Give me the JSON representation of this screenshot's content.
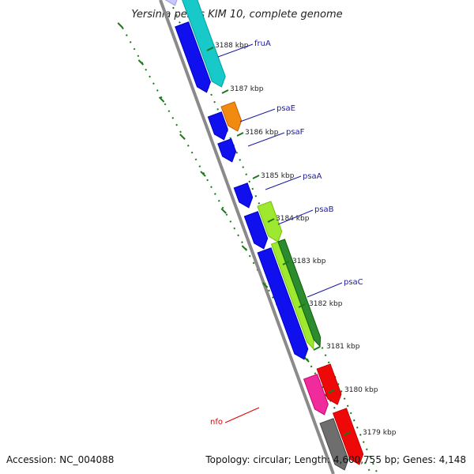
{
  "title": "Yersinia pestis KIM 10, complete genome",
  "footer": {
    "accession": "Accession: NC_004088",
    "summary": "Topology: circular; Length: 4,600,755 bp; Genes: 4,148"
  },
  "colors": {
    "backbone": "#8a8a8a",
    "ticks": "#1a7a1a",
    "blue": "#1010ee",
    "cyan": "#17c9c9",
    "orange": "#f08a10",
    "lightgreen": "#9ee830",
    "darkgreen": "#2e8a2e",
    "magenta": "#f02c9c",
    "red": "#ee0808",
    "gray": "#6e6e6e"
  },
  "ticks": [
    {
      "label": "3188 kbp"
    },
    {
      "label": "3187 kbp"
    },
    {
      "label": "3186 kbp"
    },
    {
      "label": "3185 kbp"
    },
    {
      "label": "3184 kbp"
    },
    {
      "label": "3183 kbp"
    },
    {
      "label": "3182 kbp"
    },
    {
      "label": "3181 kbp"
    },
    {
      "label": "3180 kbp"
    },
    {
      "label": "3179 kbp"
    }
  ],
  "genes": [
    {
      "name": "fruA",
      "label_color": "blue"
    },
    {
      "name": "psaE",
      "label_color": "blue"
    },
    {
      "name": "psaF",
      "label_color": "blue"
    },
    {
      "name": "psaA",
      "label_color": "blue"
    },
    {
      "name": "psaB",
      "label_color": "blue"
    },
    {
      "name": "psaC",
      "label_color": "blue"
    },
    {
      "name": "nfo",
      "label_color": "red"
    }
  ]
}
